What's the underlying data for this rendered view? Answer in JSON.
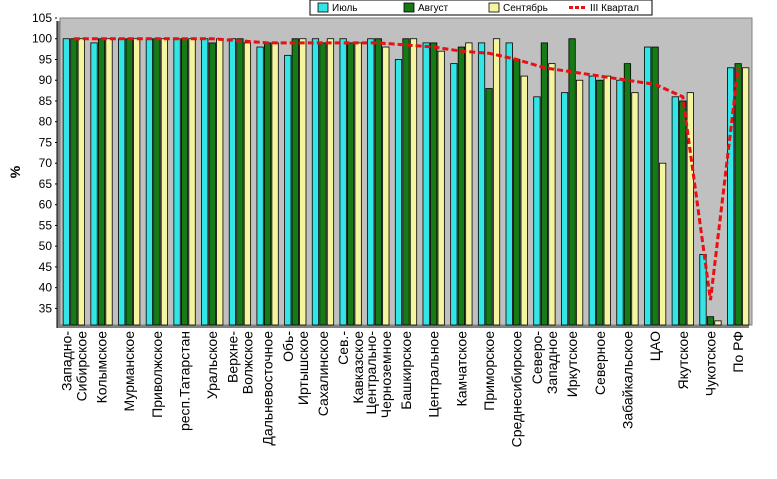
{
  "chart_data": {
    "type": "bar",
    "ylabel": "%",
    "ylim": [
      31,
      105
    ],
    "yticks": [
      35,
      40,
      45,
      50,
      55,
      60,
      65,
      70,
      75,
      80,
      85,
      90,
      95,
      100,
      105
    ],
    "grid": false,
    "legend_position": "top-right",
    "categories": [
      "Западно-Сибирское",
      "Колымское",
      "Мурманское",
      "Приволжское",
      "респ.Татарстан",
      "Уральское",
      "Верхне-Волжское",
      "Дальневосточное",
      "Обь-Иртышское",
      "Сахалинское",
      "Сев.-Кавказское",
      "Центрально-Черноземное",
      "Башкирское",
      "Центральное",
      "Камчатское",
      "Приморское",
      "Среднесибирское",
      "Северо-Западное",
      "Иркутское",
      "Северное",
      "Забайкальское",
      "ЦАО",
      "Якутское",
      "Чукотское",
      "По РФ"
    ],
    "category_label_lines": [
      [
        "Западно-",
        "Сибирское"
      ],
      [
        "Колымское"
      ],
      [
        "Мурманское"
      ],
      [
        "Приволжское"
      ],
      [
        "респ.Татарстан"
      ],
      [
        "Уральское"
      ],
      [
        "Верхне-",
        "Волжское"
      ],
      [
        "Дальневосточное"
      ],
      [
        "Обь-",
        "Иртышское"
      ],
      [
        "Сахалинское"
      ],
      [
        "Сев.-",
        "Кавказское"
      ],
      [
        "Центрально-",
        "Черноземное"
      ],
      [
        "Башкирское"
      ],
      [
        "Центральное"
      ],
      [
        "Камчатское"
      ],
      [
        "Приморское"
      ],
      [
        "Среднесибирское"
      ],
      [
        "Северо-",
        "Западное"
      ],
      [
        "Иркутское"
      ],
      [
        "Северное"
      ],
      [
        "Забайкальское"
      ],
      [
        "ЦАО"
      ],
      [
        "Якутское"
      ],
      [
        "Чукотское"
      ],
      [
        "По РФ"
      ]
    ],
    "series": [
      {
        "name": "Июль",
        "type": "bar",
        "color": "#33e5e5",
        "values": [
          100,
          99,
          100,
          100,
          100,
          100,
          100,
          98,
          96,
          100,
          100,
          100,
          95,
          99,
          94,
          99,
          99,
          86,
          87,
          91,
          90,
          98,
          86,
          48,
          93
        ]
      },
      {
        "name": "Август",
        "type": "bar",
        "color": "#167a16",
        "values": [
          100,
          100,
          100,
          100,
          100,
          99,
          100,
          99,
          100,
          99,
          99,
          100,
          100,
          99,
          98,
          88,
          95,
          99,
          100,
          90,
          94,
          98,
          85,
          33,
          94
        ]
      },
      {
        "name": "Сентябрь",
        "type": "bar",
        "color": "#f5f5a0",
        "values": [
          100,
          100,
          100,
          100,
          100,
          100,
          99,
          99,
          100,
          100,
          99,
          98,
          100,
          97,
          99,
          100,
          91,
          94,
          90,
          91,
          87,
          70,
          87,
          32,
          93
        ]
      },
      {
        "name": "III Квартал",
        "type": "line",
        "color": "#e81010",
        "values": [
          100,
          100,
          100,
          100,
          100,
          100,
          99.5,
          99,
          99,
          99,
          99,
          99,
          98.5,
          98,
          97,
          96.5,
          95,
          93,
          92,
          91,
          90,
          89,
          86,
          37,
          93
        ]
      }
    ]
  }
}
